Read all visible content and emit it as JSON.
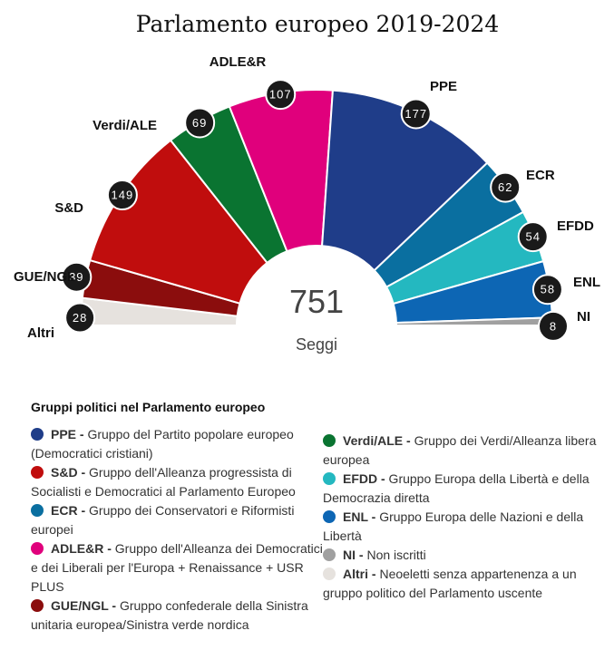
{
  "chart_data": {
    "type": "pie",
    "subtype": "parliament-semicircle",
    "title": "Parlamento europeo 2019-2024",
    "total": "751",
    "total_label": "Seggi",
    "order_clockwise": [
      "Altri",
      "GUE/NGL",
      "S&D",
      "Verdi/ALE",
      "ADLE&R",
      "PPE",
      "ECR",
      "EFDD",
      "ENL",
      "NI"
    ],
    "groups": [
      {
        "id": "PPE",
        "label": "PPE",
        "seats": 177,
        "color": "#1f3d89"
      },
      {
        "id": "S&D",
        "label": "S&D",
        "seats": 149,
        "color": "#c00d0d"
      },
      {
        "id": "ECR",
        "label": "ECR",
        "seats": 62,
        "color": "#0a6fa0"
      },
      {
        "id": "ADLE&R",
        "label": "ADLE&R",
        "seats": 107,
        "color": "#e0007c"
      },
      {
        "id": "GUE/NGL",
        "label": "GUE/NGL",
        "seats": 39,
        "color": "#8b0d0d"
      },
      {
        "id": "Verdi/ALE",
        "label": "Verdi/ALE",
        "seats": 69,
        "color": "#0a7431"
      },
      {
        "id": "EFDD",
        "label": "EFDD",
        "seats": 54,
        "color": "#24b8c0"
      },
      {
        "id": "ENL",
        "label": "ENL",
        "seats": 58,
        "color": "#0d66b4"
      },
      {
        "id": "NI",
        "label": "NI",
        "seats": 8,
        "color": "#a0a0a0"
      },
      {
        "id": "Altri",
        "label": "Altri",
        "seats": 28,
        "color": "#e6e2de"
      }
    ]
  },
  "legend": {
    "title": "Gruppi politici nel Parlamento europeo",
    "left": [
      {
        "abbr": "PPE -",
        "desc": "Gruppo del Partito popolare europeo (Democratici cristiani)",
        "color": "#1f3d89"
      },
      {
        "abbr": "S&D -",
        "desc": "Gruppo dell'Alleanza progressista di Socialisti e Democratici al Parlamento Europeo",
        "color": "#c00d0d"
      },
      {
        "abbr": "ECR -",
        "desc": "Gruppo dei Conservatori e Riformisti europei",
        "color": "#0a6fa0"
      },
      {
        "abbr": "ADLE&R -",
        "desc": "Gruppo dell'Alleanza dei Democratici e dei Liberali per l'Europa + Renaissance + USR PLUS",
        "color": "#e0007c"
      },
      {
        "abbr": "GUE/NGL -",
        "desc": "Gruppo confederale della Sinistra unitaria europea/Sinistra verde nordica",
        "color": "#8b0d0d"
      }
    ],
    "right": [
      {
        "abbr": "Verdi/ALE -",
        "desc": "Gruppo dei Verdi/Alleanza libera europea",
        "color": "#0a7431"
      },
      {
        "abbr": "EFDD -",
        "desc": "Gruppo Europa della Libertà e della Democrazia diretta",
        "color": "#24b8c0"
      },
      {
        "abbr": "ENL -",
        "desc": "Gruppo Europa delle Nazioni e della Libertà",
        "color": "#0d66b4"
      },
      {
        "abbr": "NI -",
        "desc": "Non iscritti",
        "color": "#a0a0a0"
      },
      {
        "abbr": "Altri -",
        "desc": "Neoeletti senza appartenenza a un gruppo politico del Parlamento uscente",
        "color": "#e6e2de"
      }
    ]
  }
}
